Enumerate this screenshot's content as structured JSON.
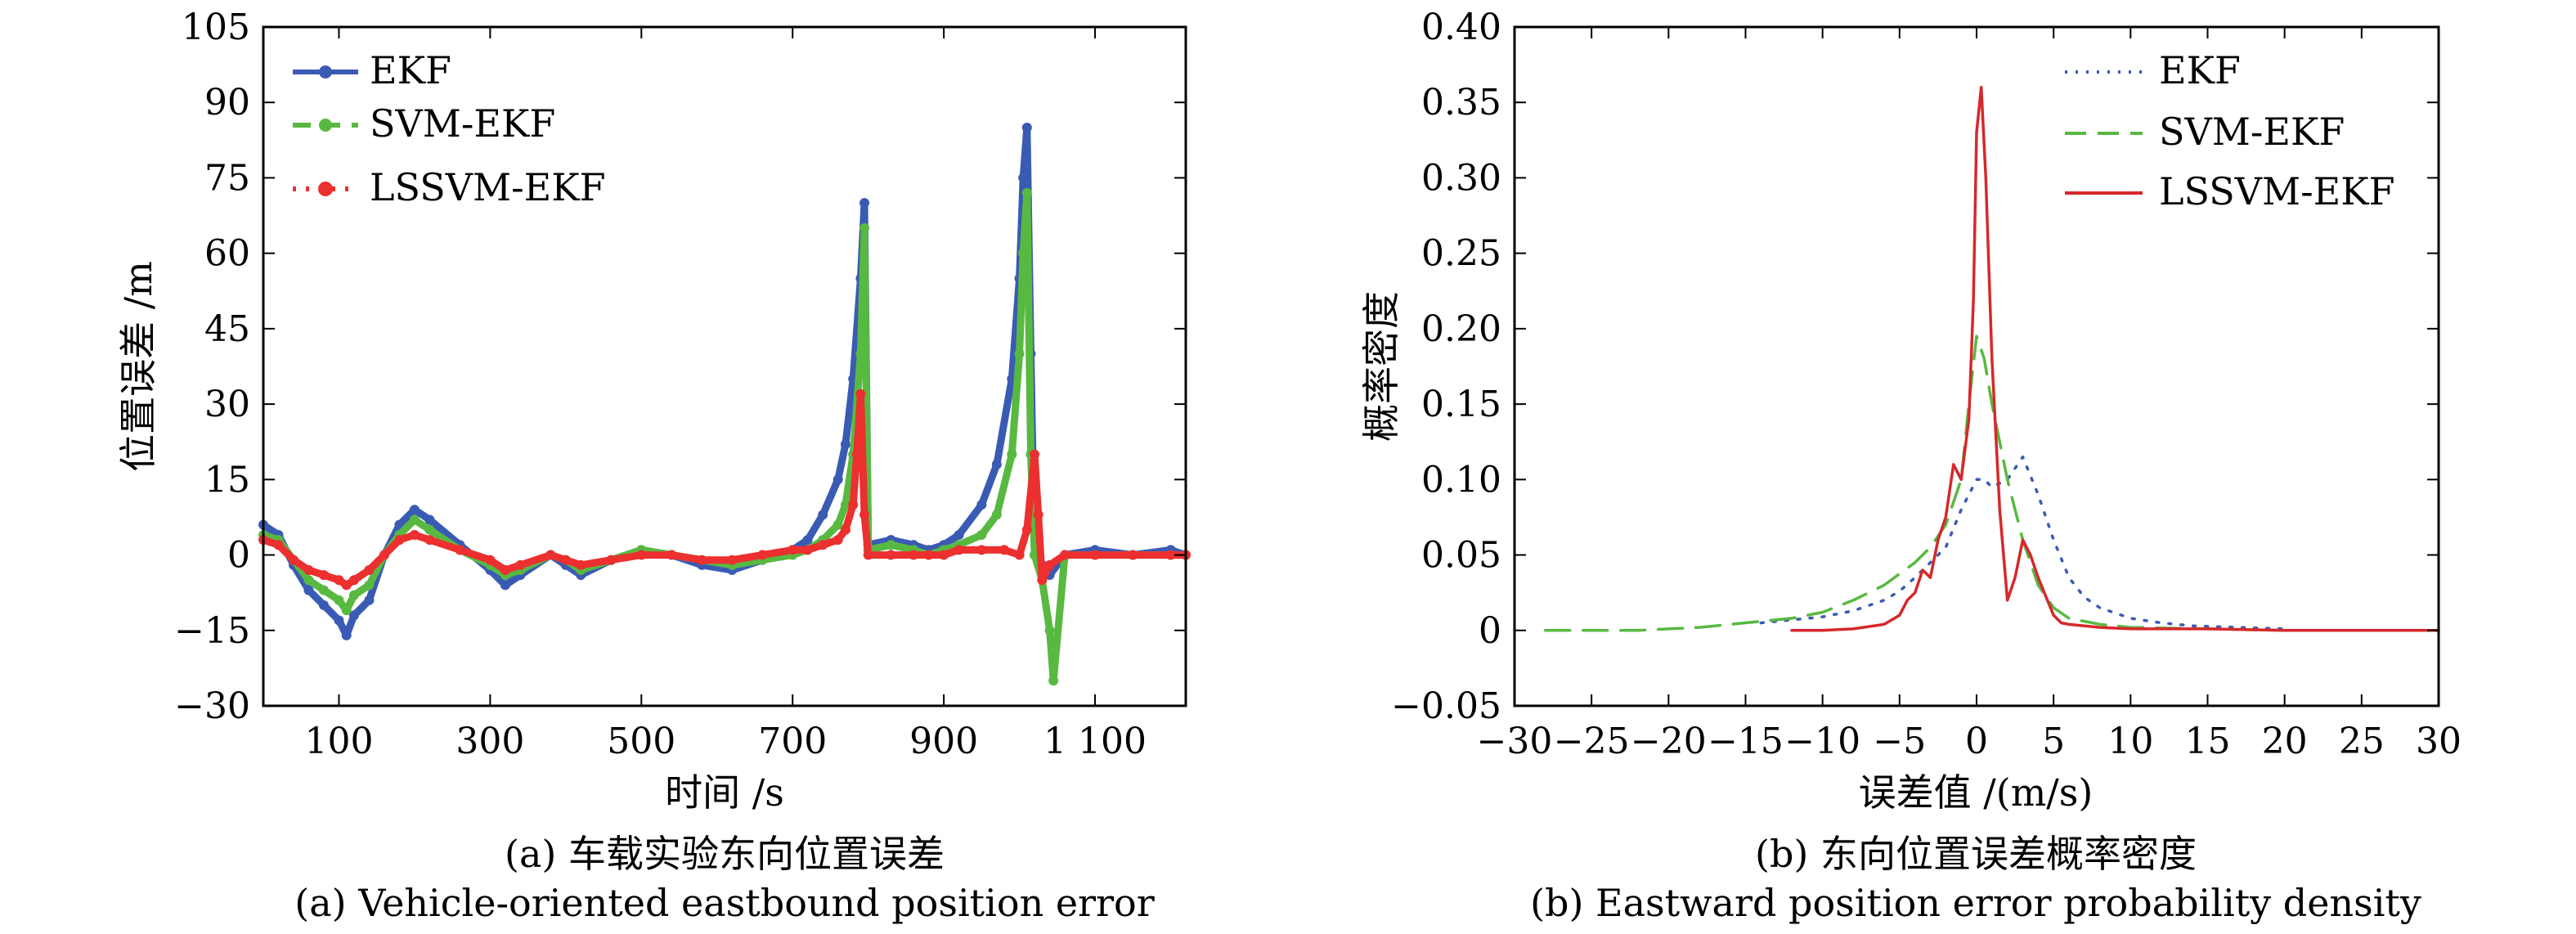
{
  "chart_data": [
    {
      "type": "line",
      "xlabel": "时间 /s",
      "ylabel": "位置误差 /m",
      "xlim": [
        0,
        1220
      ],
      "ylim": [
        -30,
        105
      ],
      "xticks": [
        100,
        300,
        500,
        700,
        900,
        1100
      ],
      "xtick_labels": [
        "100",
        "300",
        "500",
        "700",
        "900",
        "1 100"
      ],
      "yticks": [
        105,
        90,
        75,
        60,
        45,
        30,
        15,
        0,
        -15,
        -30
      ],
      "ytick_labels": [
        "105",
        "90",
        "75",
        "60",
        "45",
        "30",
        "15",
        "0",
        "−15",
        "−30"
      ],
      "legend_position": "top-left",
      "caption_cn": "(a) 车载实验东向位置误差",
      "caption_en": "(a) Vehicle-oriented eastbound position error",
      "series": [
        {
          "name": "EKF",
          "color": "#3a5bb4",
          "x": [
            0,
            20,
            40,
            60,
            80,
            100,
            110,
            120,
            140,
            160,
            180,
            200,
            220,
            260,
            300,
            320,
            340,
            380,
            400,
            420,
            460,
            500,
            540,
            580,
            620,
            660,
            700,
            720,
            740,
            760,
            770,
            780,
            790,
            795,
            800,
            830,
            860,
            880,
            900,
            920,
            950,
            970,
            990,
            1000,
            1005,
            1010,
            1015,
            1020,
            1030,
            1040,
            1060,
            1100,
            1150,
            1200,
            1220
          ],
          "y": [
            6,
            4,
            -2,
            -7,
            -10,
            -13,
            -16,
            -12,
            -9,
            0,
            6,
            9,
            7,
            2,
            -3,
            -6,
            -4,
            0,
            -2,
            -4,
            -1,
            1,
            0,
            -2,
            -3,
            -1,
            1,
            3,
            8,
            15,
            22,
            35,
            55,
            70,
            2,
            3,
            2,
            1,
            2,
            4,
            10,
            18,
            35,
            55,
            75,
            85,
            40,
            0,
            -2,
            -4,
            0,
            1,
            0,
            1,
            0
          ]
        },
        {
          "name": "SVM-EKF",
          "color": "#58b941",
          "x": [
            0,
            20,
            40,
            60,
            80,
            100,
            110,
            120,
            140,
            160,
            180,
            200,
            220,
            260,
            300,
            320,
            340,
            380,
            400,
            420,
            460,
            500,
            540,
            580,
            620,
            660,
            700,
            720,
            740,
            760,
            770,
            780,
            790,
            795,
            800,
            830,
            860,
            880,
            900,
            920,
            950,
            970,
            990,
            1000,
            1005,
            1010,
            1015,
            1020,
            1030,
            1040,
            1045,
            1060,
            1100,
            1150,
            1200,
            1220
          ],
          "y": [
            4,
            3,
            -1,
            -5,
            -7,
            -9,
            -11,
            -8,
            -6,
            0,
            4,
            7,
            5,
            1,
            -2,
            -4,
            -3,
            0,
            -1,
            -3,
            -1,
            1,
            0,
            -1,
            -2,
            -1,
            0,
            1,
            3,
            6,
            10,
            20,
            40,
            65,
            1,
            2,
            1,
            0,
            1,
            2,
            4,
            8,
            20,
            40,
            60,
            72,
            20,
            0,
            -5,
            -15,
            -25,
            0,
            0,
            0,
            0,
            0
          ]
        },
        {
          "name": "LSSVM-EKF",
          "color": "#ec2f2f",
          "x": [
            0,
            20,
            40,
            60,
            80,
            100,
            110,
            120,
            140,
            160,
            180,
            200,
            220,
            260,
            300,
            320,
            340,
            380,
            400,
            420,
            460,
            500,
            540,
            580,
            620,
            660,
            700,
            720,
            740,
            760,
            770,
            780,
            785,
            790,
            795,
            800,
            830,
            860,
            880,
            900,
            920,
            950,
            980,
            1000,
            1010,
            1020,
            1025,
            1030,
            1040,
            1060,
            1100,
            1150,
            1200,
            1220
          ],
          "y": [
            3,
            2,
            -1,
            -3,
            -4,
            -5,
            -6,
            -5,
            -3,
            0,
            3,
            4,
            3,
            1,
            -1,
            -3,
            -2,
            0,
            -1,
            -2,
            -1,
            0,
            0,
            -1,
            -1,
            0,
            1,
            1,
            2,
            3,
            5,
            10,
            20,
            32,
            8,
            0,
            0,
            0,
            0,
            0,
            1,
            1,
            1,
            0,
            5,
            20,
            8,
            -5,
            -2,
            0,
            0,
            0,
            0,
            0
          ]
        }
      ]
    },
    {
      "type": "line",
      "xlabel": "误差值 /(m/s)",
      "ylabel": "概率密度",
      "xlim": [
        -30,
        30
      ],
      "ylim": [
        -0.05,
        0.4
      ],
      "xticks": [
        -30,
        -25,
        -20,
        -15,
        -10,
        -5,
        0,
        5,
        10,
        15,
        20,
        25,
        30
      ],
      "xtick_labels": [
        "−30",
        "−25",
        "−20",
        "−15",
        "−10",
        "−5",
        "0",
        "5",
        "10",
        "15",
        "20",
        "25",
        "30"
      ],
      "yticks": [
        0.4,
        0.35,
        0.3,
        0.25,
        0.2,
        0.15,
        0.1,
        0.05,
        0,
        -0.05
      ],
      "ytick_labels": [
        "0.40",
        "0.35",
        "0.30",
        "0.25",
        "0.20",
        "0.15",
        "0.10",
        "0.05",
        "0",
        "−0.05"
      ],
      "legend_position": "top-right",
      "caption_cn": "(b) 东向位置误差概率密度",
      "caption_en": "(b) Eastward position error probability density",
      "series": [
        {
          "name": "EKF",
          "color": "#3a5bb4",
          "style": "dotted",
          "x": [
            -14,
            -12,
            -10,
            -8,
            -6,
            -5,
            -4,
            -3,
            -2,
            -1,
            -0.5,
            0,
            0.5,
            1,
            2,
            3,
            4,
            5,
            6,
            7,
            8,
            10,
            12,
            14,
            17,
            20
          ],
          "y": [
            0.005,
            0.007,
            0.009,
            0.013,
            0.02,
            0.026,
            0.035,
            0.045,
            0.055,
            0.08,
            0.09,
            0.1,
            0.1,
            0.095,
            0.1,
            0.115,
            0.09,
            0.06,
            0.035,
            0.022,
            0.015,
            0.008,
            0.005,
            0.003,
            0.002,
            0.001
          ]
        },
        {
          "name": "SVM-EKF",
          "color": "#58b941",
          "style": "dashed",
          "x": [
            -28,
            -25,
            -22,
            -20,
            -18,
            -16,
            -14,
            -12,
            -10,
            -8,
            -6,
            -4,
            -3,
            -2,
            -1,
            -0.5,
            0,
            0.5,
            1,
            2,
            3,
            4,
            5,
            6,
            8,
            10,
            15,
            20,
            25,
            30
          ],
          "y": [
            0,
            0,
            0,
            0.001,
            0.002,
            0.004,
            0.006,
            0.008,
            0.012,
            0.02,
            0.03,
            0.045,
            0.055,
            0.07,
            0.1,
            0.15,
            0.195,
            0.18,
            0.15,
            0.1,
            0.06,
            0.03,
            0.015,
            0.008,
            0.004,
            0.002,
            0.001,
            0,
            0,
            0
          ]
        },
        {
          "name": "LSSVM-EKF",
          "color": "#d6282b",
          "style": "solid",
          "x": [
            -12,
            -10,
            -8,
            -6,
            -5,
            -4.5,
            -4,
            -3.5,
            -3,
            -2.5,
            -2,
            -1.5,
            -1,
            -0.5,
            -0.2,
            0,
            0.3,
            0.6,
            1,
            1.5,
            2,
            2.5,
            3,
            3.5,
            4,
            5,
            5.5,
            6,
            7,
            8,
            10,
            15,
            20,
            25,
            30
          ],
          "y": [
            0,
            0,
            0.001,
            0.004,
            0.01,
            0.02,
            0.025,
            0.04,
            0.035,
            0.06,
            0.075,
            0.11,
            0.1,
            0.14,
            0.22,
            0.33,
            0.36,
            0.3,
            0.18,
            0.08,
            0.02,
            0.035,
            0.06,
            0.05,
            0.035,
            0.01,
            0.005,
            0.004,
            0.003,
            0.002,
            0.001,
            0.001,
            0,
            0,
            0
          ]
        }
      ]
    }
  ]
}
